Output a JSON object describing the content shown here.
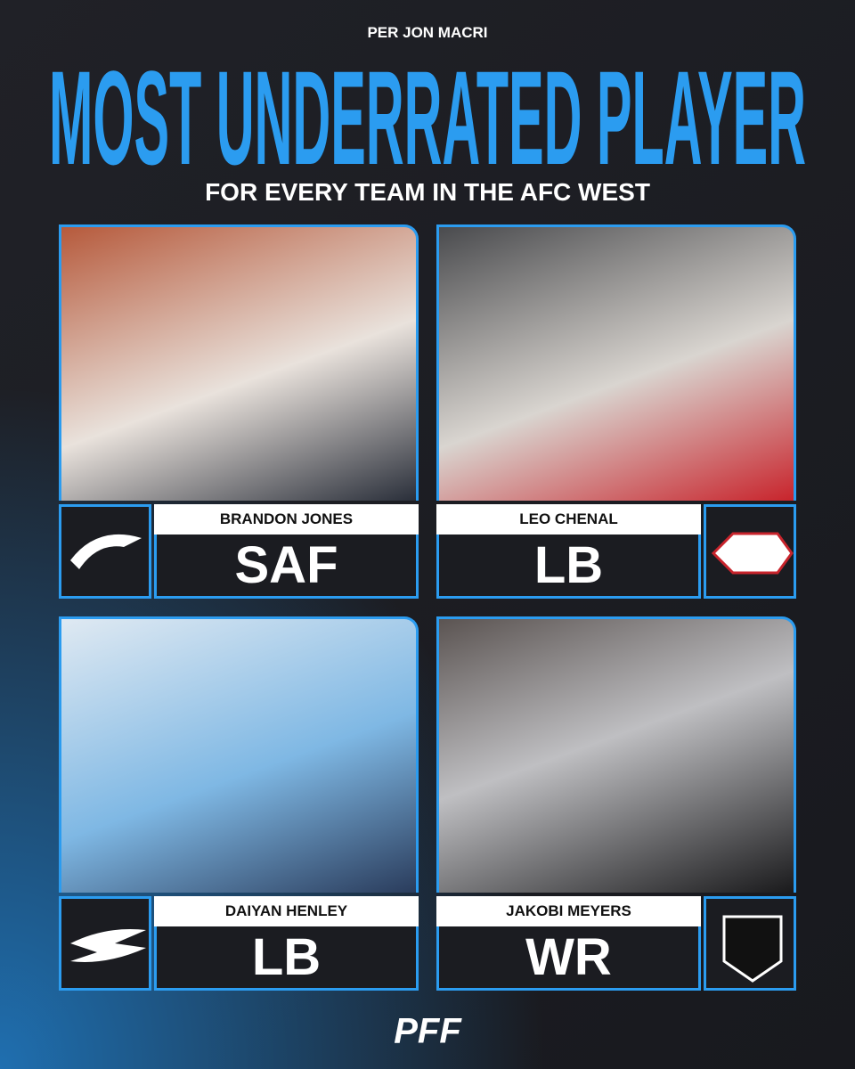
{
  "header": {
    "credit": "PER JON MACRI",
    "title": "MOST UNDERRATED PLAYER",
    "subtitle": "FOR EVERY TEAM IN THE AFC WEST"
  },
  "cards": [
    {
      "name": "BRANDON JONES",
      "position": "SAF",
      "team": "broncos"
    },
    {
      "name": "LEO CHENAL",
      "position": "LB",
      "team": "chiefs"
    },
    {
      "name": "DAIYAN HENLEY",
      "position": "LB",
      "team": "chargers"
    },
    {
      "name": "JAKOBI MEYERS",
      "position": "WR",
      "team": "raiders"
    }
  ],
  "footer": {
    "brand": "PFF"
  }
}
